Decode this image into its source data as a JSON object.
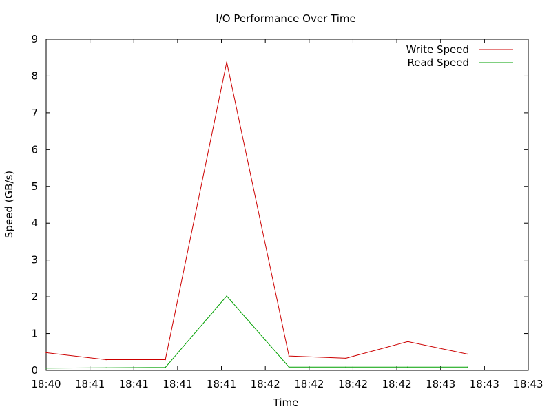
{
  "chart_data": {
    "type": "line",
    "title": "I/O Performance Over Time",
    "xlabel": "Time",
    "ylabel": "Speed (GB/s)",
    "x_tick_labels": [
      "18:40",
      "18:41",
      "18:41",
      "18:41",
      "18:41",
      "18:42",
      "18:42",
      "18:42",
      "18:42",
      "18:43",
      "18:43",
      "18:43"
    ],
    "y_ticks": [
      0,
      1,
      2,
      3,
      4,
      5,
      6,
      7,
      8,
      9
    ],
    "ylim": [
      0,
      9
    ],
    "grid": false,
    "legend_position": "top-right",
    "series": [
      {
        "name": "Write Speed",
        "color": "#cc0000",
        "points": [
          {
            "x": 0.0,
            "y": 0.48
          },
          {
            "x": 1.37,
            "y": 0.29
          },
          {
            "x": 2.72,
            "y": 0.29
          },
          {
            "x": 4.12,
            "y": 8.38
          },
          {
            "x": 5.54,
            "y": 0.39
          },
          {
            "x": 6.84,
            "y": 0.33
          },
          {
            "x": 8.25,
            "y": 0.78
          },
          {
            "x": 9.62,
            "y": 0.44
          }
        ]
      },
      {
        "name": "Read Speed",
        "color": "#00a000",
        "points": [
          {
            "x": 0.0,
            "y": 0.06
          },
          {
            "x": 1.37,
            "y": 0.07
          },
          {
            "x": 2.72,
            "y": 0.08
          },
          {
            "x": 4.12,
            "y": 2.02
          },
          {
            "x": 5.54,
            "y": 0.09
          },
          {
            "x": 6.84,
            "y": 0.09
          },
          {
            "x": 8.25,
            "y": 0.09
          },
          {
            "x": 9.62,
            "y": 0.09
          }
        ]
      }
    ]
  }
}
